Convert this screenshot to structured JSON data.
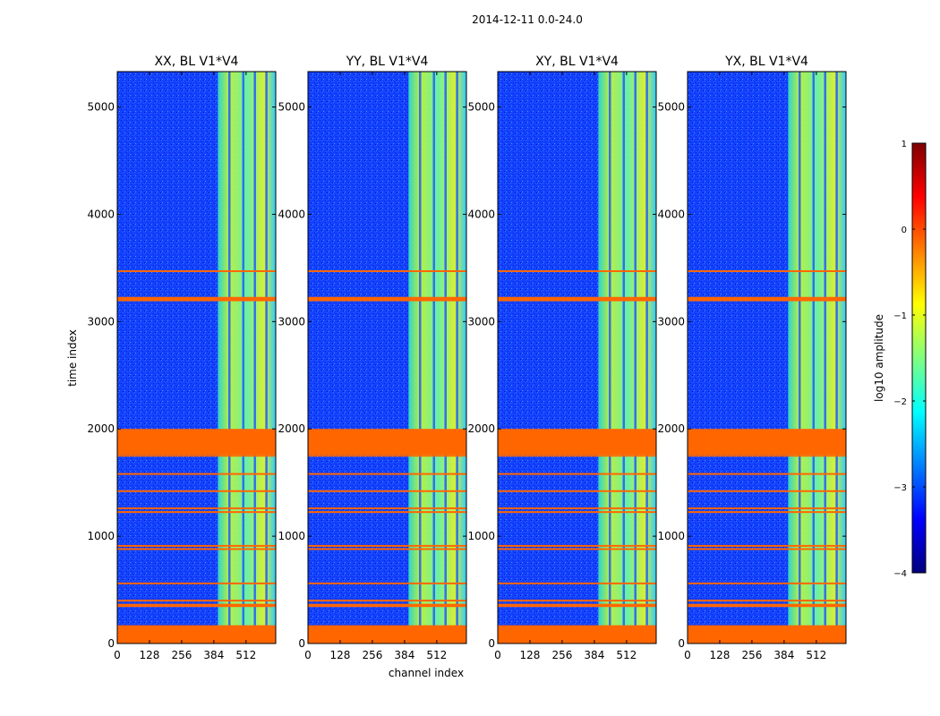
{
  "figure": {
    "suptitle": "2014-12-11 0.0-24.0",
    "ylabel": "time index",
    "xlabel": "channel index"
  },
  "chart_data": {
    "type": "heatmap",
    "colormap": "jet",
    "x_range": [
      0,
      630
    ],
    "y_range": [
      0,
      5330
    ],
    "x_ticks": [
      0,
      128,
      256,
      384,
      512
    ],
    "y_ticks": [
      0,
      1000,
      2000,
      3000,
      4000,
      5000
    ],
    "x_tick_labels": [
      "0",
      "128",
      "256",
      "384",
      "512"
    ],
    "y_tick_labels": [
      "0",
      "1000",
      "2000",
      "3000",
      "4000",
      "5000"
    ],
    "flag_color": "#ff6600",
    "panels": [
      {
        "title": "XX, BL V1*V4",
        "rfi_band_channels": [
          400,
          630
        ]
      },
      {
        "title": "YY, BL V1*V4",
        "rfi_band_channels": [
          400,
          630
        ]
      },
      {
        "title": "XY, BL V1*V4",
        "rfi_band_channels": [
          400,
          630
        ]
      },
      {
        "title": "YX, BL V1*V4",
        "rfi_band_channels": [
          400,
          630
        ]
      }
    ],
    "flagged_time_ranges": [
      [
        0,
        170
      ],
      [
        340,
        370
      ],
      [
        1760,
        2000
      ],
      [
        3190,
        3230
      ]
    ],
    "thin_flag_times": [
      400,
      560,
      880,
      910,
      1225,
      1260,
      1420,
      1580,
      1750,
      3470
    ],
    "colorbar": {
      "label": "log10 amplitude",
      "range": [
        -4,
        1
      ],
      "ticks": [
        1,
        0,
        -1,
        -2,
        -3,
        -4
      ],
      "tick_labels": [
        "1",
        "0",
        "−1",
        "−2",
        "−3",
        "−4"
      ]
    }
  }
}
